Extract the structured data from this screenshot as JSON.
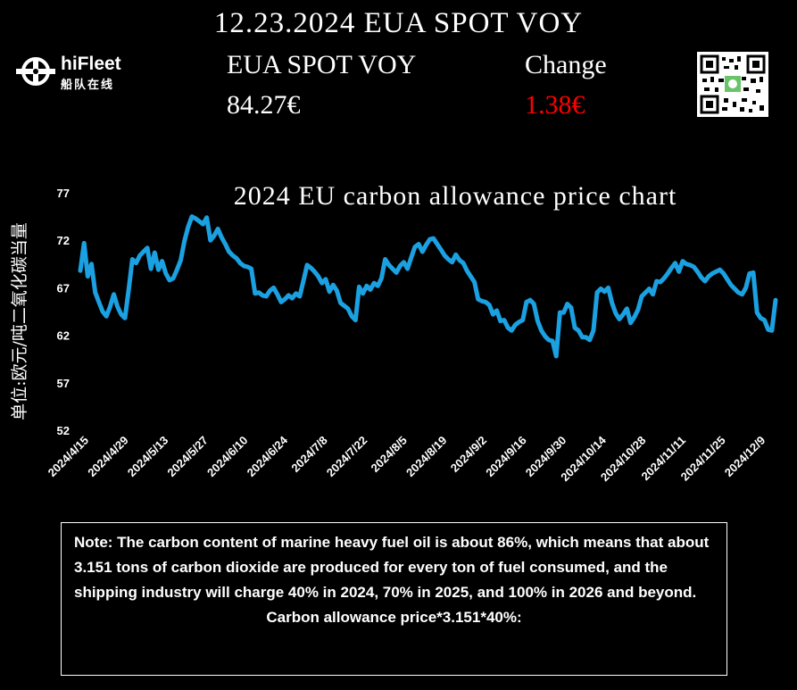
{
  "header": {
    "title": "12.23.2024 EUA SPOT VOY",
    "spot_label": "EUA SPOT VOY",
    "spot_value": "84.27€",
    "change_label": "Change",
    "change_value": "1.38€",
    "change_color": "#ff0000"
  },
  "logo": {
    "name": "hiFleet",
    "subtitle": "船队在线",
    "icon": "globe-icon"
  },
  "qr": {
    "icon": "qr-code-icon"
  },
  "chart_data": {
    "type": "line",
    "title": "2024 EU carbon allowance price chart",
    "ylabel": "单位:欧元/吨二氧化碳当量",
    "ylim": [
      52,
      77
    ],
    "yticks": [
      77,
      72,
      67,
      62,
      57,
      52
    ],
    "xlabels": [
      "2024/4/15",
      "2024/4/29",
      "2024/5/13",
      "2024/5/27",
      "2024/6/10",
      "2024/6/24",
      "2024/7/8",
      "2024/7/22",
      "2024/8/5",
      "2024/8/19",
      "2024/9/2",
      "2024/9/16",
      "2024/9/30",
      "2024/10/14",
      "2024/10/28",
      "2024/11/11",
      "2024/11/25",
      "2024/12/9"
    ],
    "line_color": "#1ba1e2",
    "series": [
      {
        "values": [
          68.8,
          71.7,
          68.2,
          69.5,
          66.5,
          65.5,
          64.5,
          64.0,
          65.0,
          66.3,
          65.0,
          64.2,
          63.8,
          66.8,
          70.0,
          69.6,
          70.4,
          70.8,
          71.2,
          69.0,
          70.7,
          68.9,
          69.8,
          68.5,
          67.8,
          68.0,
          68.9,
          69.9,
          71.9,
          73.4,
          74.5,
          74.3,
          74.0,
          73.7,
          74.4,
          72.0,
          72.5,
          73.2,
          72.3,
          71.6,
          70.8,
          70.4,
          70.1,
          69.6,
          69.3,
          69.2,
          69.0,
          66.4,
          66.5,
          66.2,
          66.1,
          66.7,
          67.0,
          66.3,
          65.5,
          65.8,
          66.2,
          65.9,
          66.4,
          66.1,
          67.7,
          69.4,
          69.1,
          68.7,
          68.2,
          67.5,
          67.9,
          66.6,
          67.3,
          66.7,
          65.4,
          65.1,
          64.8,
          64.0,
          63.6,
          67.1,
          66.4,
          67.2,
          66.8,
          67.5,
          67.2,
          68.0,
          70.0,
          69.4,
          69.0,
          68.6,
          69.3,
          69.7,
          69.0,
          70.2,
          71.3,
          71.6,
          70.8,
          71.5,
          72.1,
          72.2,
          71.6,
          71.0,
          70.4,
          70.0,
          69.7,
          70.5,
          69.9,
          69.6,
          68.8,
          68.2,
          67.6,
          65.8,
          65.6,
          65.5,
          65.2,
          64.2,
          64.6,
          63.5,
          63.6,
          62.8,
          62.5,
          63.1,
          63.4,
          63.6,
          65.5,
          65.7,
          65.3,
          63.5,
          62.5,
          61.9,
          61.5,
          61.4,
          59.8,
          64.4,
          64.4,
          65.3,
          64.9,
          62.8,
          62.5,
          61.8,
          61.8,
          61.5,
          62.5,
          66.5,
          66.9,
          66.6,
          67.0,
          65.4,
          64.3,
          63.7,
          64.2,
          64.8,
          63.3,
          63.9,
          64.7,
          66.1,
          66.5,
          66.9,
          66.3,
          67.7,
          67.6,
          68.0,
          68.5,
          69.1,
          69.6,
          68.7,
          69.8,
          69.5,
          69.4,
          69.2,
          68.7,
          68.1,
          67.7,
          68.2,
          68.5,
          68.7,
          68.9,
          68.5,
          67.9,
          67.3,
          66.9,
          66.5,
          66.3,
          67.0,
          68.5,
          68.6,
          64.4,
          63.8,
          63.6,
          62.6,
          62.5,
          65.7
        ]
      }
    ]
  },
  "note": {
    "text": "Note: The carbon content of marine heavy fuel oil is about 86%, which means that about 3.151 tons of carbon dioxide are produced for every ton of fuel consumed, and the shipping industry will charge 40% in 2024, 70% in 2025, and 100% in 2026 and beyond.",
    "formula": "Carbon allowance price*3.151*40%:"
  }
}
